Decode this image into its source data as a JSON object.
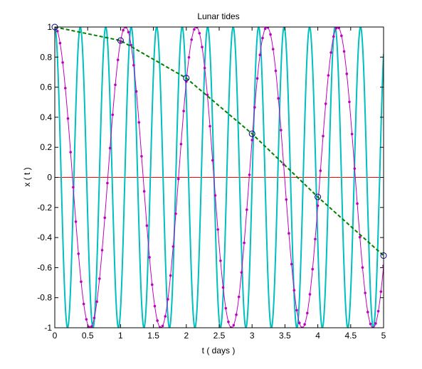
{
  "chart_data": {
    "type": "line",
    "title": "Lunar tides",
    "xlabel": "t  ( days )",
    "ylabel": "x ( t )",
    "xlim": [
      0,
      5
    ],
    "ylim": [
      -1,
      1
    ],
    "xticks": [
      0,
      0.5,
      1,
      1.5,
      2,
      2.5,
      3,
      3.5,
      4,
      4.5,
      5
    ],
    "xtick_labels": [
      "0",
      "0.5",
      "1",
      "1.5",
      "2",
      "2.5",
      "3",
      "3.5",
      "4",
      "4.5",
      "5"
    ],
    "yticks": [
      -1,
      -0.8,
      -0.6,
      -0.4,
      -0.2,
      0,
      0.2,
      0.4,
      0.6,
      0.8,
      1
    ],
    "ytick_labels": [
      "-1",
      "-0.8",
      "-0.6",
      "-0.4",
      "-0.2",
      "0",
      "0.2",
      "0.4",
      "0.6",
      "0.8",
      "1"
    ],
    "grid": false,
    "series": [
      {
        "function": "cos(2*pi*t/0.3875)",
        "color": "#00bfbf",
        "style": "solid",
        "sample_step_days": 0.01
      },
      {
        "function": "cos(2*pi*t/1.0753)",
        "color": "#bf00bf",
        "style": "solid-with-dot-markers",
        "marker_step_days": 0.04
      },
      {
        "x": [
          0,
          1,
          2,
          3,
          4,
          5
        ],
        "y": [
          1,
          0.91,
          0.66,
          0.29,
          -0.13,
          -0.52
        ],
        "color": "#008000",
        "style": "dashed",
        "markers": "circle"
      }
    ],
    "reference_line": {
      "y": 0,
      "color": "#ff0000"
    }
  }
}
